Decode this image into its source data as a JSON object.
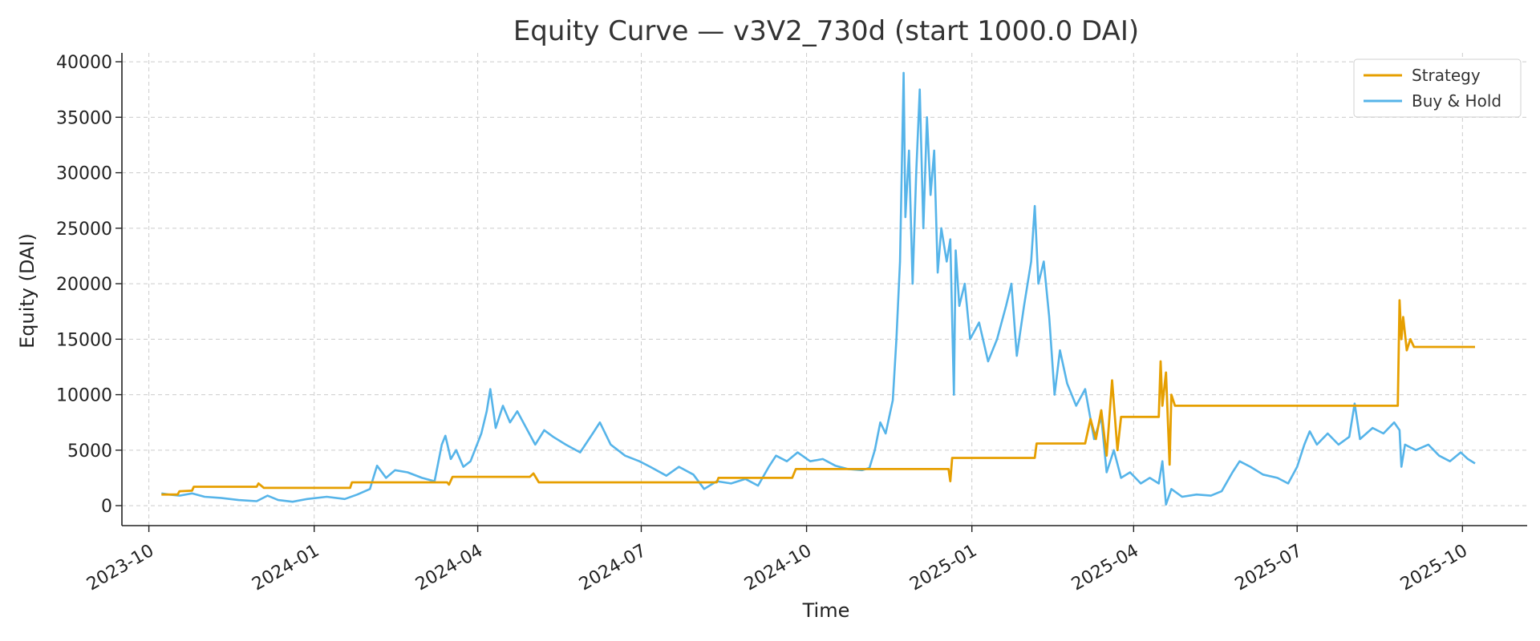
{
  "chart_data": {
    "type": "line",
    "title": "Equity Curve — v3V2_730d (start 1000.0 DAI)",
    "xlabel": "Time",
    "ylabel": "Equity (DAI)",
    "xlim": [
      "2023-09-16",
      "2025-11-06"
    ],
    "ylim": [
      -1800,
      40800
    ],
    "grid": true,
    "legend_position": "top-right",
    "x_ticks": [
      "2023-10",
      "2024-01",
      "2024-04",
      "2024-07",
      "2024-10",
      "2025-01",
      "2025-04",
      "2025-07",
      "2025-10"
    ],
    "y_ticks": [
      0,
      5000,
      10000,
      15000,
      20000,
      25000,
      30000,
      35000,
      40000
    ],
    "series": [
      {
        "name": "Strategy",
        "color": "#E69F00",
        "points": [
          [
            "2023-10-08",
            1000
          ],
          [
            "2023-10-17",
            1000
          ],
          [
            "2023-10-18",
            1300
          ],
          [
            "2023-10-25",
            1350
          ],
          [
            "2023-10-26",
            1700
          ],
          [
            "2023-11-30",
            1700
          ],
          [
            "2023-12-01",
            2000
          ],
          [
            "2023-12-04",
            1600
          ],
          [
            "2024-01-21",
            1600
          ],
          [
            "2024-01-22",
            2100
          ],
          [
            "2024-03-15",
            2100
          ],
          [
            "2024-03-16",
            1900
          ],
          [
            "2024-03-18",
            2600
          ],
          [
            "2024-04-30",
            2600
          ],
          [
            "2024-05-02",
            2900
          ],
          [
            "2024-05-05",
            2100
          ],
          [
            "2024-08-12",
            2100
          ],
          [
            "2024-08-13",
            2500
          ],
          [
            "2024-09-23",
            2500
          ],
          [
            "2024-09-25",
            3300
          ],
          [
            "2024-12-19",
            3300
          ],
          [
            "2024-12-20",
            2200
          ],
          [
            "2024-12-21",
            4300
          ],
          [
            "2025-02-05",
            4300
          ],
          [
            "2025-02-06",
            5600
          ],
          [
            "2025-03-05",
            5600
          ],
          [
            "2025-03-08",
            7800
          ],
          [
            "2025-03-11",
            6000
          ],
          [
            "2025-03-14",
            8600
          ],
          [
            "2025-03-17",
            4500
          ],
          [
            "2025-03-20",
            11300
          ],
          [
            "2025-03-23",
            5000
          ],
          [
            "2025-03-25",
            8000
          ],
          [
            "2025-04-15",
            8000
          ],
          [
            "2025-04-16",
            13000
          ],
          [
            "2025-04-17",
            9000
          ],
          [
            "2025-04-19",
            12000
          ],
          [
            "2025-04-21",
            3700
          ],
          [
            "2025-04-22",
            10000
          ],
          [
            "2025-04-24",
            9000
          ],
          [
            "2025-08-26",
            9000
          ],
          [
            "2025-08-27",
            18500
          ],
          [
            "2025-08-28",
            15000
          ],
          [
            "2025-08-29",
            17000
          ],
          [
            "2025-08-31",
            14000
          ],
          [
            "2025-09-02",
            15000
          ],
          [
            "2025-09-04",
            14300
          ],
          [
            "2025-10-08",
            14300
          ]
        ]
      },
      {
        "name": "Buy & Hold",
        "color": "#56B4E9",
        "points": [
          [
            "2023-10-08",
            1100
          ],
          [
            "2023-10-12",
            1000
          ],
          [
            "2023-10-18",
            900
          ],
          [
            "2023-10-25",
            1100
          ],
          [
            "2023-11-01",
            800
          ],
          [
            "2023-11-10",
            700
          ],
          [
            "2023-11-20",
            500
          ],
          [
            "2023-11-30",
            400
          ],
          [
            "2023-12-06",
            900
          ],
          [
            "2023-12-12",
            500
          ],
          [
            "2023-12-20",
            350
          ],
          [
            "2023-12-28",
            600
          ],
          [
            "2024-01-08",
            800
          ],
          [
            "2024-01-18",
            600
          ],
          [
            "2024-01-25",
            1000
          ],
          [
            "2024-02-01",
            1500
          ],
          [
            "2024-02-05",
            3600
          ],
          [
            "2024-02-10",
            2500
          ],
          [
            "2024-02-15",
            3200
          ],
          [
            "2024-02-22",
            3000
          ],
          [
            "2024-03-01",
            2500
          ],
          [
            "2024-03-08",
            2200
          ],
          [
            "2024-03-12",
            5500
          ],
          [
            "2024-03-14",
            6300
          ],
          [
            "2024-03-17",
            4200
          ],
          [
            "2024-03-20",
            5000
          ],
          [
            "2024-03-24",
            3500
          ],
          [
            "2024-03-28",
            4000
          ],
          [
            "2024-04-03",
            6500
          ],
          [
            "2024-04-06",
            8500
          ],
          [
            "2024-04-08",
            10500
          ],
          [
            "2024-04-11",
            7000
          ],
          [
            "2024-04-15",
            9000
          ],
          [
            "2024-04-19",
            7500
          ],
          [
            "2024-04-23",
            8500
          ],
          [
            "2024-04-28",
            7000
          ],
          [
            "2024-05-03",
            5500
          ],
          [
            "2024-05-08",
            6800
          ],
          [
            "2024-05-13",
            6200
          ],
          [
            "2024-05-20",
            5500
          ],
          [
            "2024-05-28",
            4800
          ],
          [
            "2024-06-04",
            6500
          ],
          [
            "2024-06-08",
            7500
          ],
          [
            "2024-06-14",
            5500
          ],
          [
            "2024-06-22",
            4500
          ],
          [
            "2024-06-30",
            4000
          ],
          [
            "2024-07-06",
            3500
          ],
          [
            "2024-07-15",
            2700
          ],
          [
            "2024-07-22",
            3500
          ],
          [
            "2024-07-30",
            2800
          ],
          [
            "2024-08-05",
            1500
          ],
          [
            "2024-08-12",
            2200
          ],
          [
            "2024-08-20",
            2000
          ],
          [
            "2024-08-28",
            2400
          ],
          [
            "2024-09-04",
            1800
          ],
          [
            "2024-09-10",
            3500
          ],
          [
            "2024-09-14",
            4500
          ],
          [
            "2024-09-20",
            4000
          ],
          [
            "2024-09-26",
            4800
          ],
          [
            "2024-10-03",
            4000
          ],
          [
            "2024-10-10",
            4200
          ],
          [
            "2024-10-17",
            3600
          ],
          [
            "2024-10-24",
            3300
          ],
          [
            "2024-11-01",
            3200
          ],
          [
            "2024-11-05",
            3400
          ],
          [
            "2024-11-08",
            5000
          ],
          [
            "2024-11-11",
            7500
          ],
          [
            "2024-11-14",
            6500
          ],
          [
            "2024-11-18",
            9500
          ],
          [
            "2024-11-20",
            15000
          ],
          [
            "2024-11-22",
            22000
          ],
          [
            "2024-11-24",
            39000
          ],
          [
            "2024-11-25",
            26000
          ],
          [
            "2024-11-27",
            32000
          ],
          [
            "2024-11-29",
            20000
          ],
          [
            "2024-12-01",
            30000
          ],
          [
            "2024-12-03",
            37500
          ],
          [
            "2024-12-05",
            25000
          ],
          [
            "2024-12-07",
            35000
          ],
          [
            "2024-12-09",
            28000
          ],
          [
            "2024-12-11",
            32000
          ],
          [
            "2024-12-13",
            21000
          ],
          [
            "2024-12-15",
            25000
          ],
          [
            "2024-12-18",
            22000
          ],
          [
            "2024-12-20",
            24000
          ],
          [
            "2024-12-22",
            10000
          ],
          [
            "2024-12-23",
            23000
          ],
          [
            "2024-12-25",
            18000
          ],
          [
            "2024-12-28",
            20000
          ],
          [
            "2024-12-31",
            15000
          ],
          [
            "2025-01-05",
            16500
          ],
          [
            "2025-01-10",
            13000
          ],
          [
            "2025-01-15",
            15000
          ],
          [
            "2025-01-20",
            18000
          ],
          [
            "2025-01-23",
            20000
          ],
          [
            "2025-01-26",
            13500
          ],
          [
            "2025-01-30",
            18000
          ],
          [
            "2025-02-03",
            22000
          ],
          [
            "2025-02-05",
            27000
          ],
          [
            "2025-02-07",
            20000
          ],
          [
            "2025-02-10",
            22000
          ],
          [
            "2025-02-13",
            17000
          ],
          [
            "2025-02-16",
            10000
          ],
          [
            "2025-02-19",
            14000
          ],
          [
            "2025-02-23",
            11000
          ],
          [
            "2025-02-28",
            9000
          ],
          [
            "2025-03-05",
            10500
          ],
          [
            "2025-03-10",
            6000
          ],
          [
            "2025-03-14",
            8000
          ],
          [
            "2025-03-17",
            3000
          ],
          [
            "2025-03-21",
            5000
          ],
          [
            "2025-03-25",
            2500
          ],
          [
            "2025-03-30",
            3000
          ],
          [
            "2025-04-05",
            2000
          ],
          [
            "2025-04-10",
            2500
          ],
          [
            "2025-04-15",
            2000
          ],
          [
            "2025-04-17",
            4000
          ],
          [
            "2025-04-19",
            100
          ],
          [
            "2025-04-22",
            1500
          ],
          [
            "2025-04-28",
            800
          ],
          [
            "2025-05-06",
            1000
          ],
          [
            "2025-05-14",
            900
          ],
          [
            "2025-05-20",
            1300
          ],
          [
            "2025-05-26",
            3000
          ],
          [
            "2025-05-30",
            4000
          ],
          [
            "2025-06-05",
            3500
          ],
          [
            "2025-06-12",
            2800
          ],
          [
            "2025-06-20",
            2500
          ],
          [
            "2025-06-26",
            2000
          ],
          [
            "2025-07-01",
            3500
          ],
          [
            "2025-07-05",
            5500
          ],
          [
            "2025-07-08",
            6700
          ],
          [
            "2025-07-12",
            5500
          ],
          [
            "2025-07-18",
            6500
          ],
          [
            "2025-07-24",
            5500
          ],
          [
            "2025-07-30",
            6200
          ],
          [
            "2025-08-02",
            9200
          ],
          [
            "2025-08-05",
            6000
          ],
          [
            "2025-08-12",
            7000
          ],
          [
            "2025-08-18",
            6500
          ],
          [
            "2025-08-24",
            7500
          ],
          [
            "2025-08-27",
            6800
          ],
          [
            "2025-08-28",
            3500
          ],
          [
            "2025-08-30",
            5500
          ],
          [
            "2025-09-05",
            5000
          ],
          [
            "2025-09-12",
            5500
          ],
          [
            "2025-09-18",
            4500
          ],
          [
            "2025-09-24",
            4000
          ],
          [
            "2025-09-30",
            4800
          ],
          [
            "2025-10-04",
            4200
          ],
          [
            "2025-10-08",
            3800
          ]
        ]
      }
    ]
  }
}
